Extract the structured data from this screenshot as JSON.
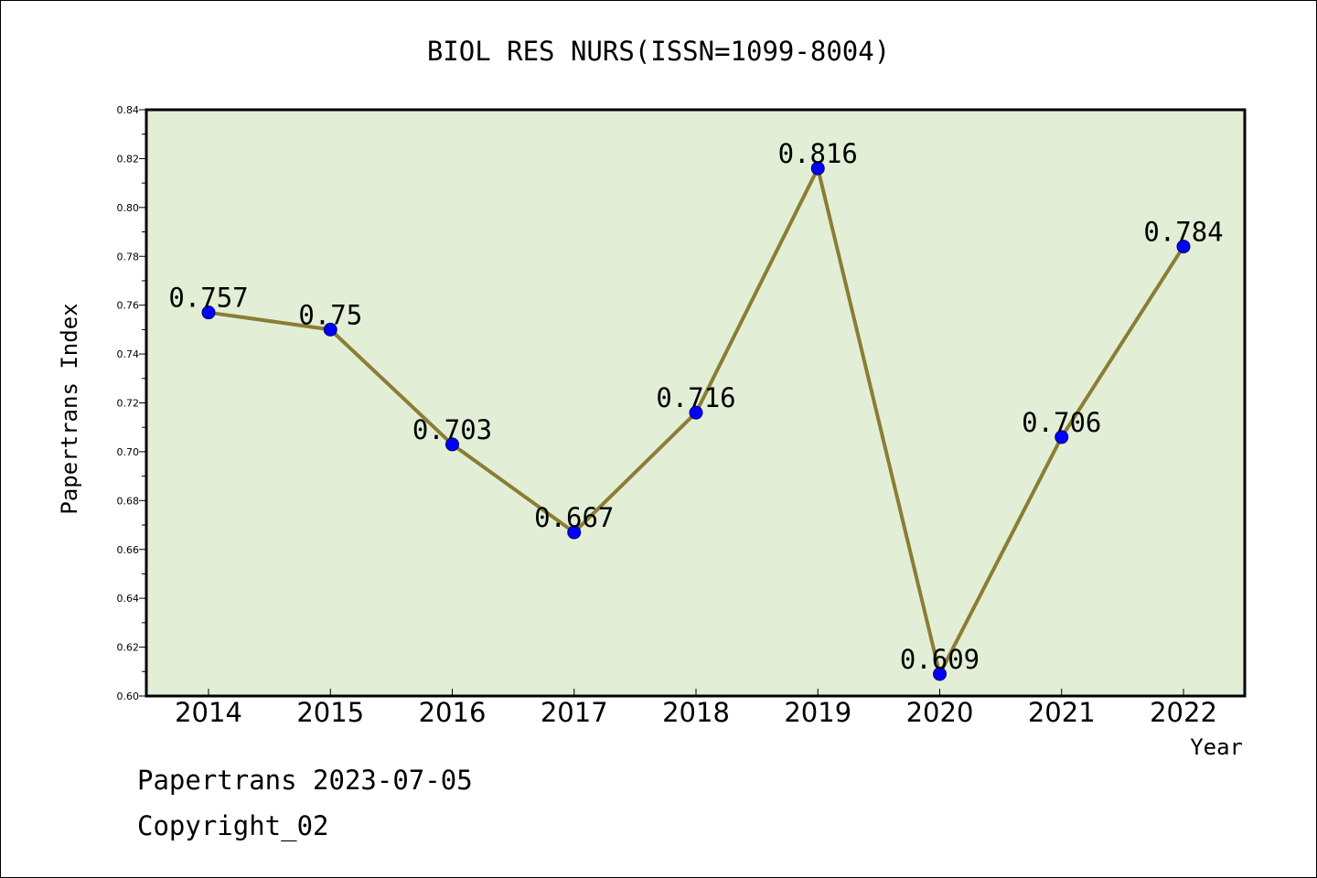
{
  "chart_data": {
    "type": "line",
    "title": "BIOL RES NURS(ISSN=1099-8004)",
    "xlabel": "Year",
    "ylabel": "Papertrans Index",
    "categories": [
      "2014",
      "2015",
      "2016",
      "2017",
      "2018",
      "2019",
      "2020",
      "2021",
      "2022"
    ],
    "series": [
      {
        "values": [
          0.757,
          0.75,
          0.703,
          0.667,
          0.716,
          0.816,
          0.609,
          0.706,
          0.784
        ]
      }
    ],
    "data_labels": [
      "0.757",
      "0.75",
      "0.703",
      "0.667",
      "0.716",
      "0.816",
      "0.609",
      "0.706",
      "0.784"
    ],
    "ylim": [
      0.6,
      0.84
    ],
    "yticks": [
      "0.60",
      "0.62",
      "0.64",
      "0.66",
      "0.68",
      "0.70",
      "0.72",
      "0.74",
      "0.76",
      "0.78",
      "0.80",
      "0.82",
      "0.84"
    ],
    "grid": false,
    "legend": "none",
    "colors": {
      "plot_background": "#e2efd6",
      "line": "#8b7d35",
      "marker": "#0000ff"
    }
  },
  "footer": {
    "line1": "Papertrans 2023-07-05",
    "line2": "Copyright_02"
  }
}
